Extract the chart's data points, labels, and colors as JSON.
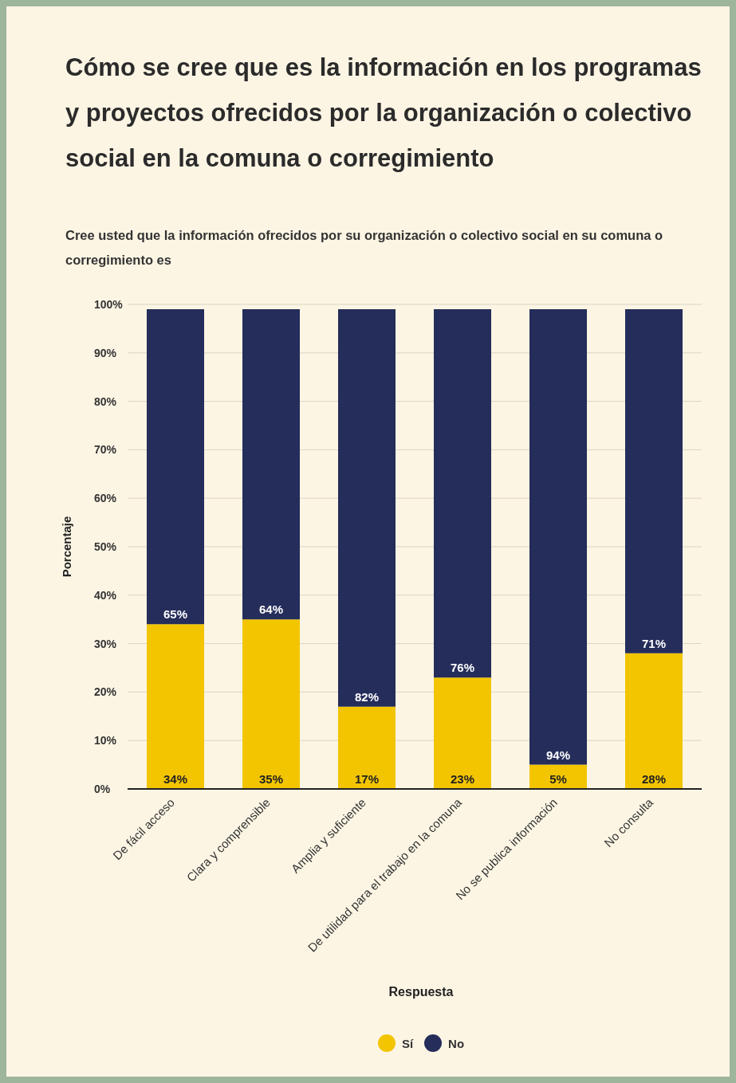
{
  "chart_data": {
    "type": "bar",
    "title": "Cómo se cree que es la información en los programas y proyectos ofrecidos por la organización o colectivo social en la comuna o corregimiento",
    "subtitle": "Cree usted que la información ofrecidos por su organización o colectivo social en su comuna o corregimiento es",
    "xlabel": "Respuesta",
    "ylabel": "Porcentaje",
    "categories": [
      "De fácil acceso",
      "Clara y comprensible",
      "Amplia y suficiente",
      "De utilidad para el trabajo en la comuna",
      "No se publica información",
      "No consulta"
    ],
    "series": [
      {
        "name": "Sí",
        "color": "#f2c500",
        "values": [
          34,
          35,
          17,
          23,
          5,
          28
        ],
        "value_labels": [
          "34%",
          "35%",
          "17%",
          "23%",
          "5%",
          "28%"
        ]
      },
      {
        "name": "No",
        "color": "#252d5a",
        "values": [
          65,
          64,
          82,
          76,
          94,
          71
        ],
        "value_labels": [
          "65%",
          "64%",
          "82%",
          "76%",
          "94%",
          "71%"
        ]
      }
    ],
    "stacked": true,
    "ylim": [
      0,
      100
    ],
    "yticks": [
      {
        "value": 0,
        "label": "0%"
      },
      {
        "value": 10,
        "label": "10%"
      },
      {
        "value": 20,
        "label": "20%"
      },
      {
        "value": 30,
        "label": "30%"
      },
      {
        "value": 40,
        "label": "40%"
      },
      {
        "value": 50,
        "label": "50%"
      },
      {
        "value": 60,
        "label": "60%"
      },
      {
        "value": 70,
        "label": "70%"
      },
      {
        "value": 80,
        "label": "80%"
      },
      {
        "value": 90,
        "label": "90%"
      },
      {
        "value": 100,
        "label": "100%"
      }
    ],
    "grid": "y",
    "legend": "bottom"
  }
}
